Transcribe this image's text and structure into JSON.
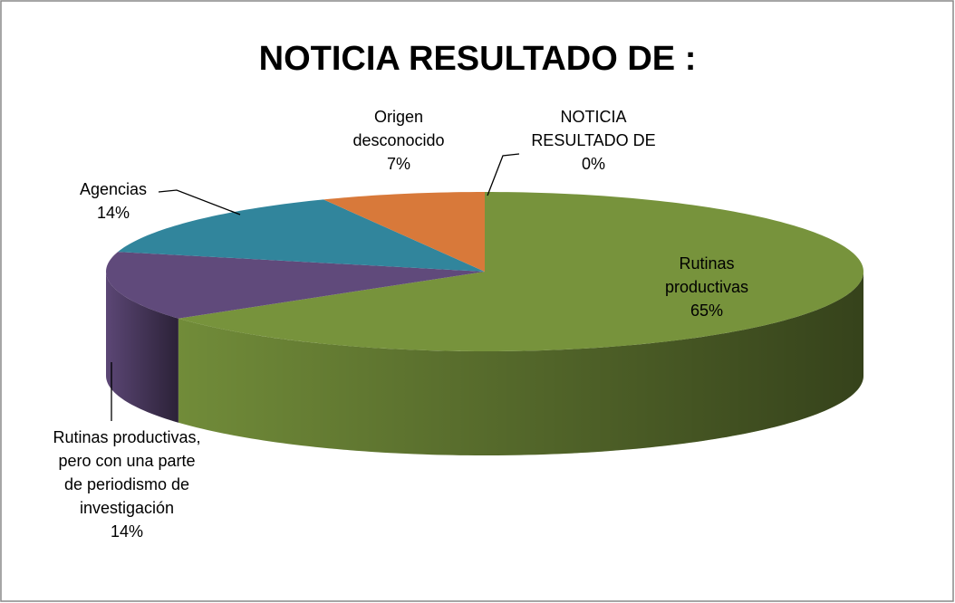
{
  "chart_data": {
    "type": "pie3d",
    "title": "NOTICIA RESULTADO DE :",
    "categories": [
      "NOTICIA RESULTADO DE",
      "Rutinas productivas",
      "Rutinas productivas, pero con una parte de periodismo de investigación",
      "Agencias",
      "Origen desconocido"
    ],
    "values": [
      0,
      65,
      14,
      14,
      7
    ],
    "value_labels": [
      "0%",
      "65%",
      "14%",
      "14%",
      "7%"
    ],
    "colors": [
      "#4f81bd",
      "#77933c",
      "#604a7b",
      "#31859c",
      "#d8793a"
    ]
  }
}
